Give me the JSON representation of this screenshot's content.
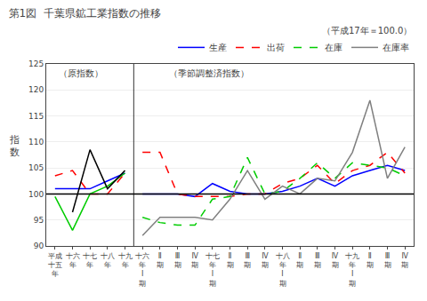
{
  "chart_data": {
    "type": "line",
    "title": "第1図  千葉県鉱工業指数の推移",
    "subtitle": "（平成17年＝100.0）",
    "y_label": "指\n数",
    "annotations": [
      "（原指数）",
      "（季節調整済指数）"
    ],
    "categories": [
      "平成\n十五\n年",
      "十六\n年",
      "十七\n年",
      "十八\n年",
      "十九\n年",
      "十六\n年\nⅠ\n期",
      "Ⅱ\n期",
      "Ⅲ\n期",
      "Ⅳ\n期",
      "十七\n年\nⅠ\n期",
      "Ⅱ\n期",
      "Ⅲ\n期",
      "Ⅳ\n期",
      "十八\n年\nⅠ\n期",
      "Ⅱ\n期",
      "Ⅲ\n期",
      "Ⅳ\n期",
      "十九\n年\nⅠ\n期",
      "Ⅱ\n期",
      "Ⅲ\n期",
      "Ⅳ\n期"
    ],
    "series": [
      {
        "name": "生産",
        "color": "#0000ff",
        "line_style": "solid",
        "values": [
          101.0,
          101.0,
          101.0,
          102.5,
          104.0,
          null,
          null,
          null,
          null,
          null,
          null,
          null,
          null,
          null,
          null,
          null,
          null,
          null,
          null,
          null,
          null
        ]
      },
      {
        "name": "出荷",
        "color": "#ff0000",
        "line_style": "dashed",
        "values": [
          103.5,
          104.5,
          100.0,
          100.0,
          104.0,
          null,
          null,
          null,
          null,
          null,
          null,
          null,
          null,
          null,
          null,
          null,
          null,
          null,
          null,
          null,
          null
        ]
      },
      {
        "name": "在庫",
        "color": "#00cc00",
        "line_style": "solid",
        "values": [
          99.5,
          93.0,
          100.0,
          101.5,
          104.0,
          null,
          null,
          null,
          null,
          null,
          null,
          null,
          null,
          null,
          null,
          null,
          null,
          null,
          null,
          null,
          null
        ]
      },
      {
        "name": "在庫率",
        "color": "#000000",
        "line_style": "solid",
        "values": [
          null,
          96.5,
          108.5,
          101.0,
          104.5,
          null,
          null,
          null,
          null,
          null,
          null,
          null,
          null,
          null,
          null,
          null,
          null,
          null,
          null,
          null,
          null
        ]
      },
      {
        "name": "生産",
        "color": "#0000ff",
        "line_style": "solid",
        "values": [
          null,
          null,
          null,
          null,
          null,
          100.0,
          100.0,
          100.0,
          99.5,
          102.0,
          100.5,
          100.0,
          100.0,
          100.5,
          101.5,
          103.0,
          101.5,
          103.5,
          104.5,
          105.5,
          104.5
        ]
      },
      {
        "name": "出荷",
        "color": "#ff0000",
        "line_style": "dashed",
        "values": [
          null,
          null,
          null,
          null,
          null,
          108.0,
          108.0,
          100.0,
          99.5,
          99.5,
          99.5,
          100.0,
          100.0,
          102.0,
          103.0,
          105.5,
          102.0,
          104.5,
          105.5,
          108.0,
          104.0
        ]
      },
      {
        "name": "在庫",
        "color": "#00cc00",
        "line_style": "dashed",
        "values": [
          null,
          null,
          null,
          null,
          null,
          95.5,
          94.5,
          94.0,
          94.0,
          99.0,
          99.5,
          107.0,
          100.0,
          100.5,
          103.0,
          106.0,
          103.0,
          106.0,
          105.5,
          105.0,
          103.5
        ]
      },
      {
        "name": "在庫率",
        "color": "#808080",
        "line_style": "solid",
        "values": [
          null,
          null,
          null,
          null,
          null,
          92.0,
          95.5,
          95.5,
          95.5,
          95.0,
          99.0,
          104.5,
          99.0,
          101.5,
          100.0,
          103.0,
          102.5,
          108.0,
          118.0,
          103.0,
          109.0
        ]
      }
    ],
    "reference_line": 100,
    "ylim": [
      90,
      125
    ],
    "yticks": [
      90,
      95,
      100,
      105,
      110,
      115,
      120,
      125
    ],
    "grid": true,
    "legend": "upper right"
  }
}
